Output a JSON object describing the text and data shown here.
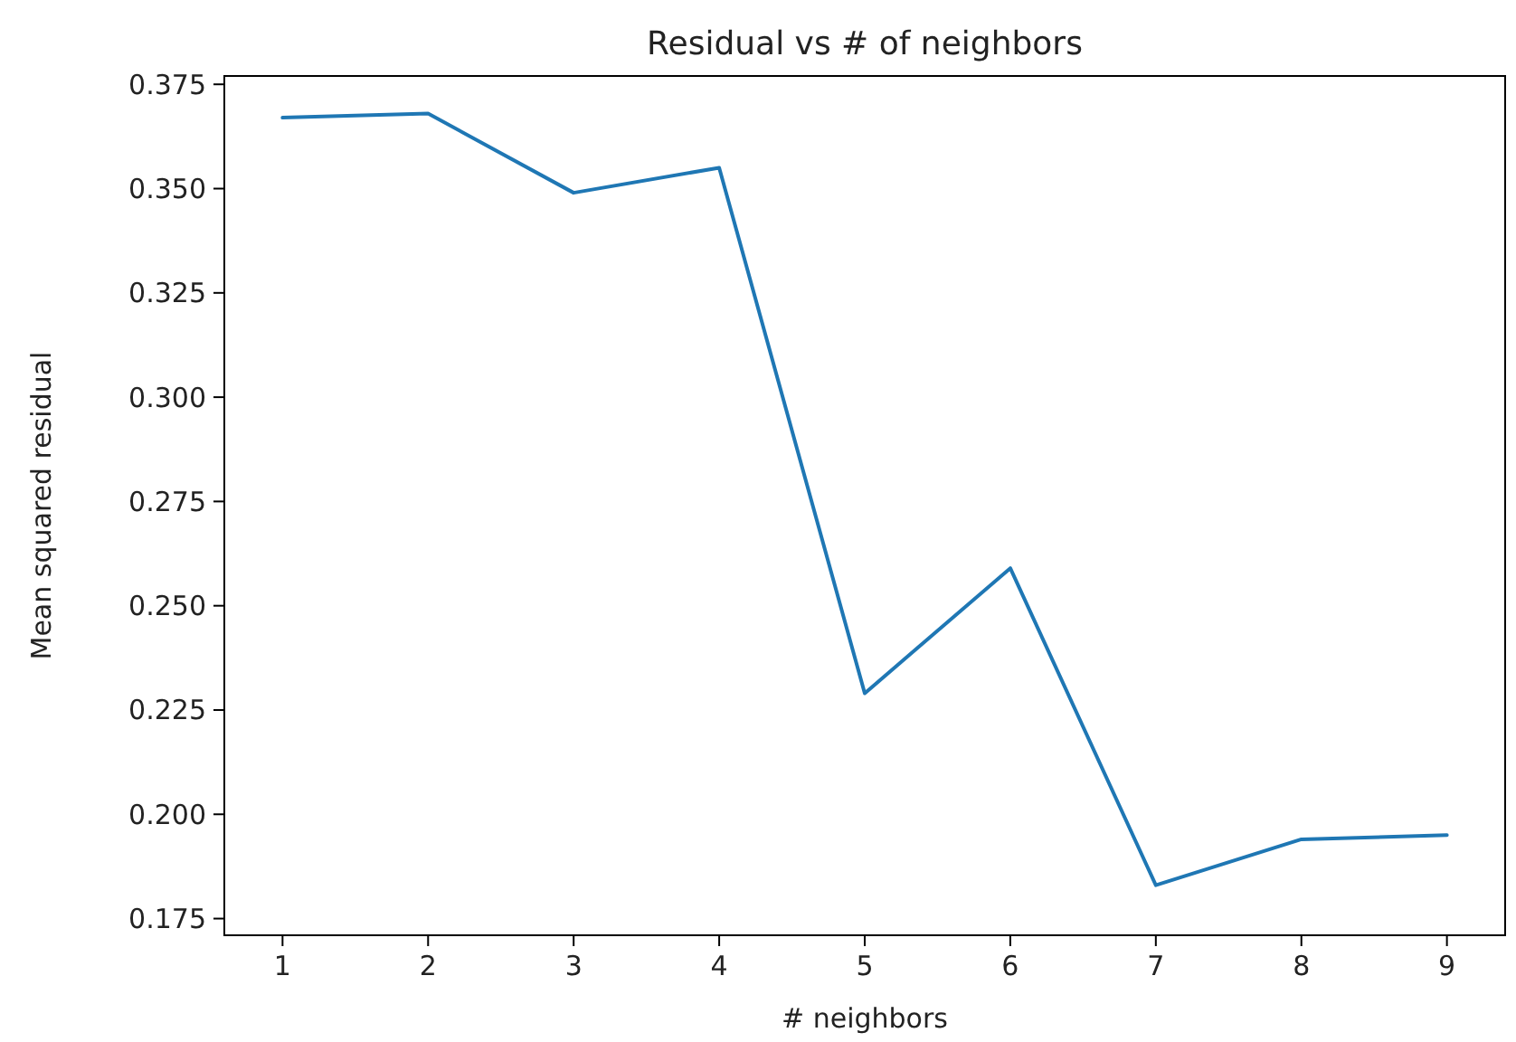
{
  "chart_data": {
    "type": "line",
    "title": "Residual vs # of neighbors",
    "xlabel": "# neighbors",
    "ylabel": "Mean squared residual",
    "x": [
      1,
      2,
      3,
      4,
      5,
      6,
      7,
      8,
      9
    ],
    "series": [
      {
        "color": "#1f77b4",
        "values": [
          0.367,
          0.368,
          0.349,
          0.355,
          0.229,
          0.259,
          0.183,
          0.194,
          0.195
        ]
      }
    ],
    "xlim": [
      0.6,
      9.4
    ],
    "xticks": [
      1,
      2,
      3,
      4,
      5,
      6,
      7,
      8,
      9
    ],
    "ylim": [
      0.171,
      0.377
    ],
    "yticks": [
      {
        "value": 0.175,
        "label": "0.175"
      },
      {
        "value": 0.2,
        "label": "0.200"
      },
      {
        "value": 0.225,
        "label": "0.225"
      },
      {
        "value": 0.25,
        "label": "0.250"
      },
      {
        "value": 0.275,
        "label": "0.275"
      },
      {
        "value": 0.3,
        "label": "0.300"
      },
      {
        "value": 0.325,
        "label": "0.325"
      },
      {
        "value": 0.35,
        "label": "0.350"
      },
      {
        "value": 0.375,
        "label": "0.375"
      }
    ],
    "grid": false,
    "marker": "none",
    "line_style": "solid"
  }
}
